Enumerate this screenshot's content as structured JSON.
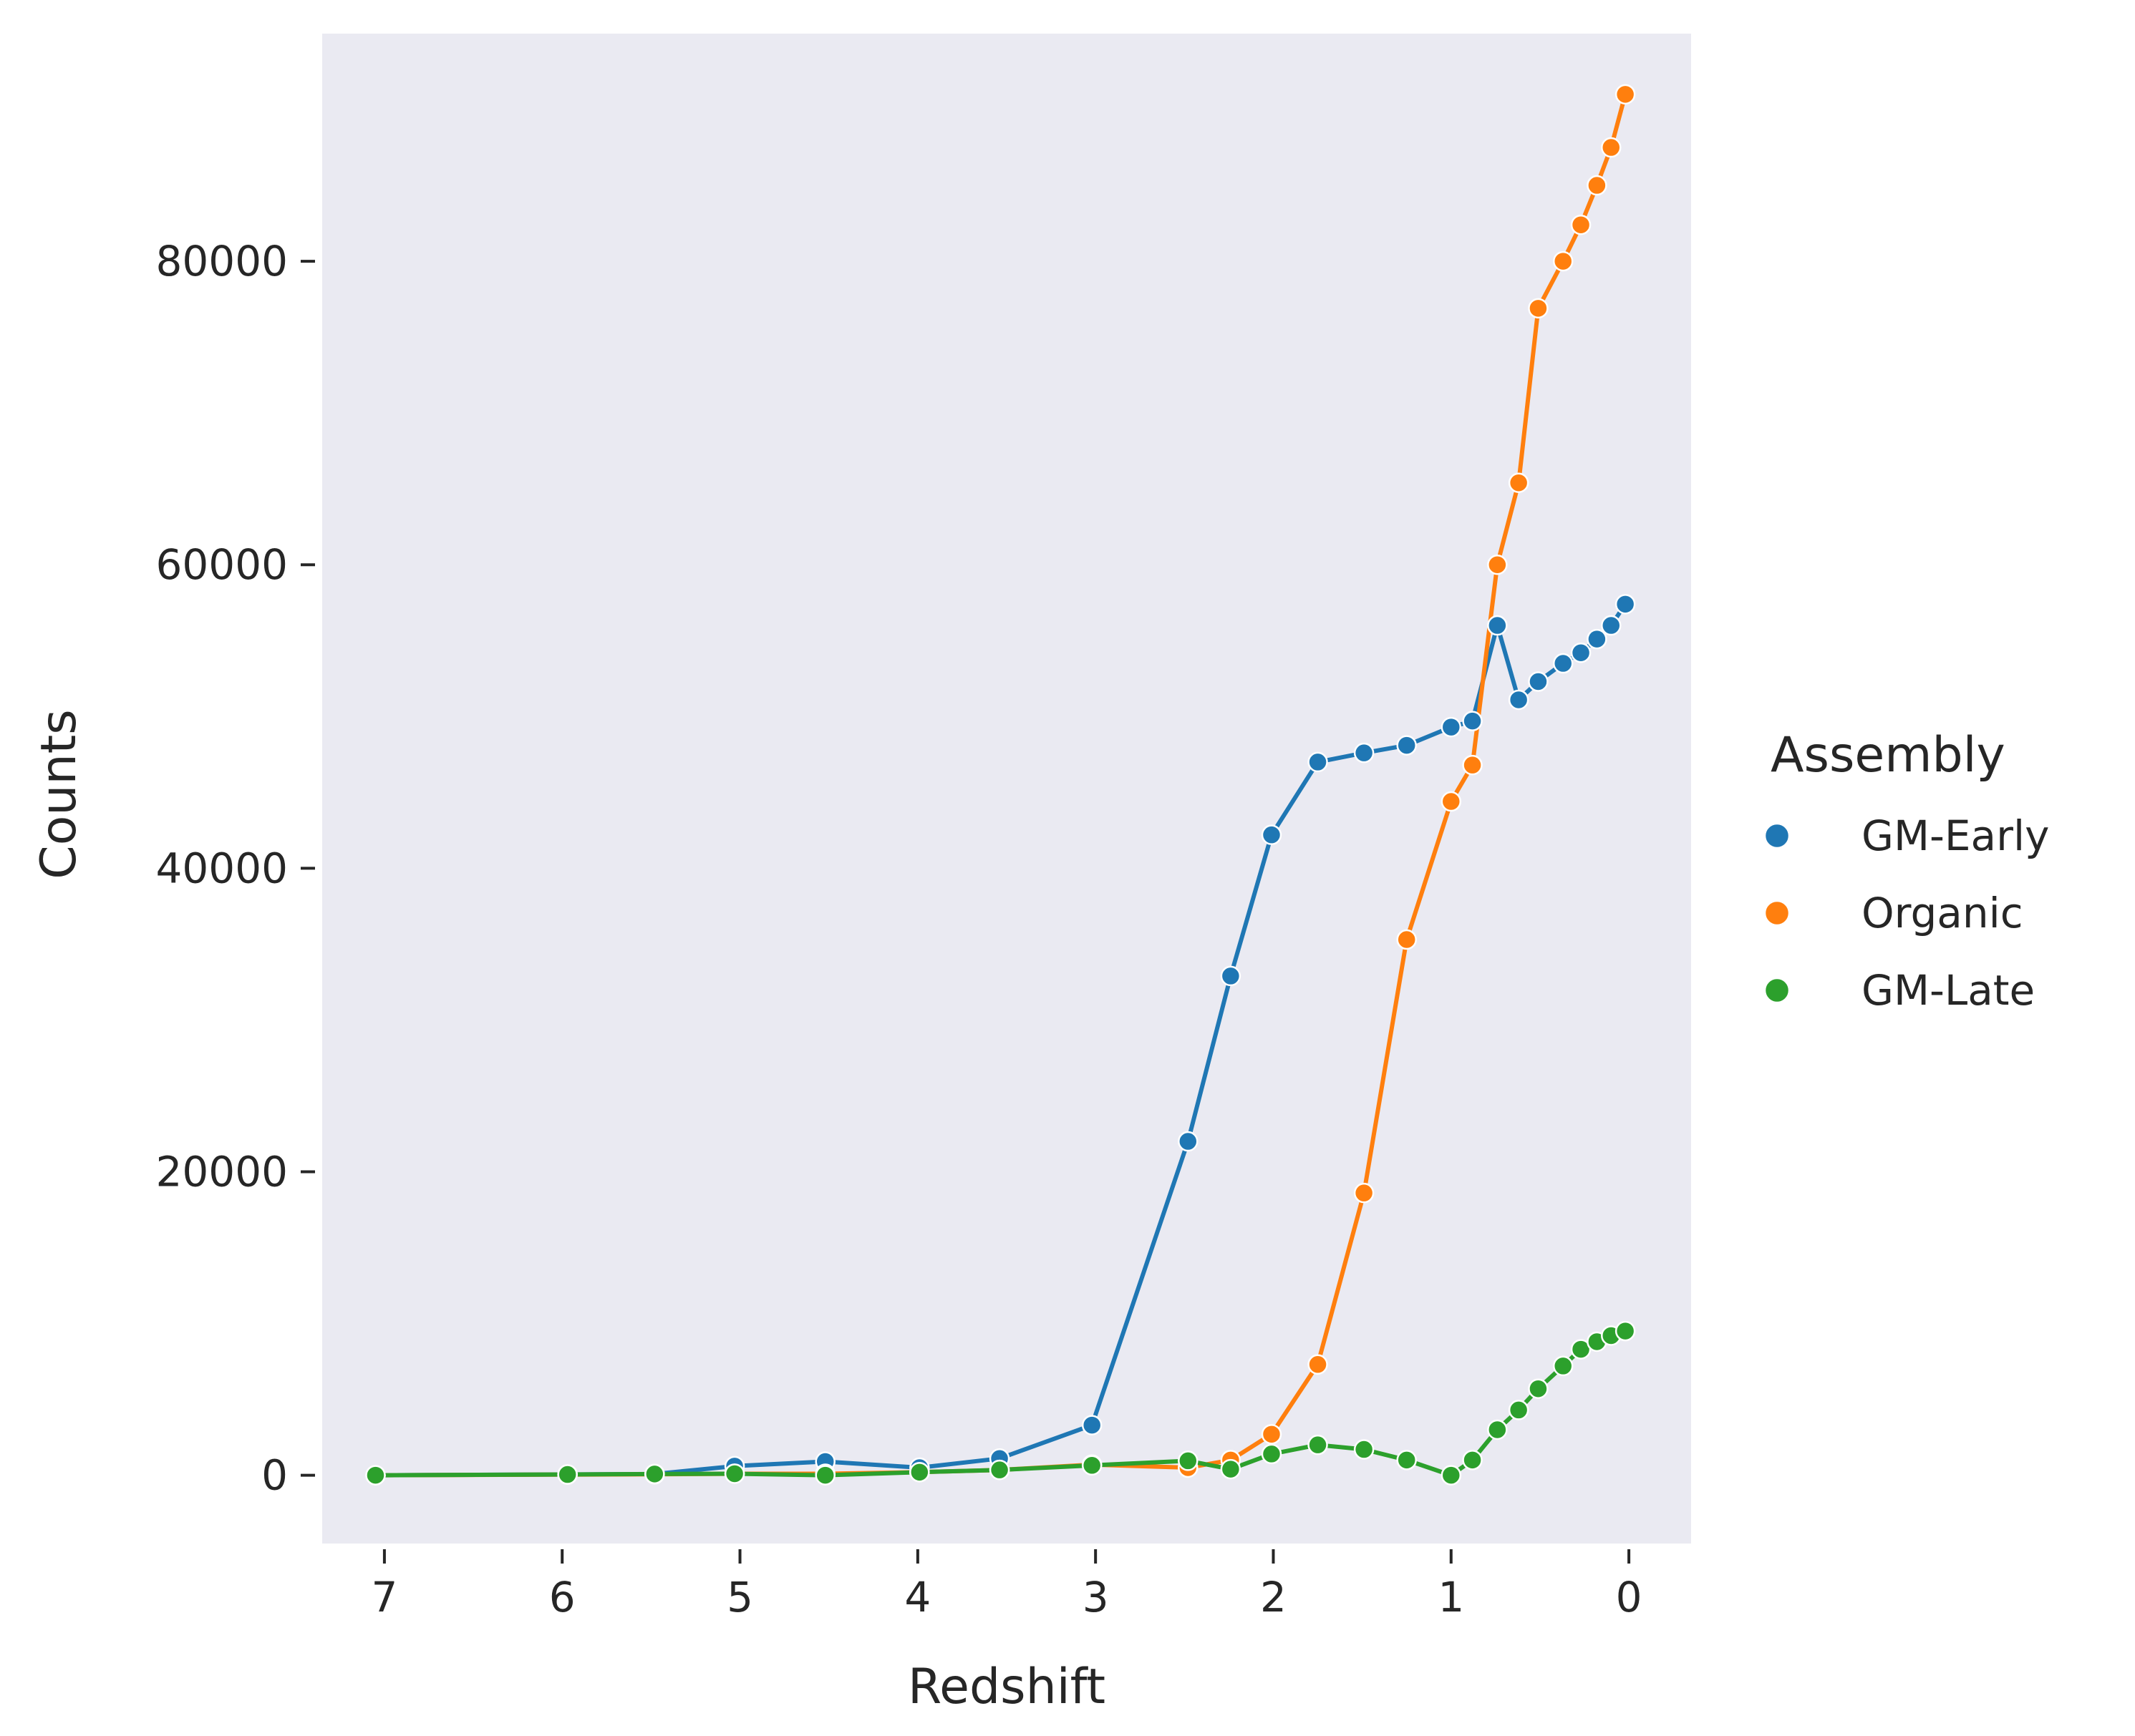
{
  "chart_data": {
    "type": "line",
    "xlabel": "Redshift",
    "ylabel": "Counts",
    "x_reversed": true,
    "xlim": [
      7.35,
      -0.35
    ],
    "ylim": [
      -4500,
      95000
    ],
    "xticks": [
      7,
      6,
      5,
      4,
      3,
      2,
      1,
      0
    ],
    "yticks": [
      0,
      20000,
      40000,
      60000,
      80000
    ],
    "grid": false,
    "background": "#eaeaf2",
    "legend": {
      "title": "Assembly",
      "placement": "right",
      "entries": [
        "GM-Early",
        "Organic",
        "GM-Late"
      ]
    },
    "series": [
      {
        "name": "GM-Early",
        "color": "#1f77b4",
        "x": [
          7.05,
          5.97,
          5.48,
          5.03,
          4.52,
          3.99,
          3.54,
          3.02,
          2.48,
          2.24,
          2.01,
          1.75,
          1.49,
          1.25,
          1.0,
          0.88,
          0.74,
          0.62,
          0.51,
          0.37,
          0.27,
          0.18,
          0.1,
          0.02
        ],
        "y": [
          0,
          50,
          80,
          600,
          900,
          500,
          1100,
          3300,
          22000,
          32900,
          42200,
          47000,
          47600,
          48100,
          49300,
          49700,
          56000,
          51100,
          52300,
          53500,
          54200,
          55100,
          56000,
          57400
        ]
      },
      {
        "name": "Organic",
        "color": "#ff7f0e",
        "x": [
          7.05,
          5.97,
          5.48,
          5.03,
          4.52,
          3.99,
          3.54,
          3.02,
          2.48,
          2.24,
          2.01,
          1.75,
          1.49,
          1.25,
          1.0,
          0.88,
          0.74,
          0.62,
          0.51,
          0.37,
          0.27,
          0.18,
          0.1,
          0.02
        ],
        "y": [
          0,
          40,
          60,
          100,
          100,
          200,
          350,
          700,
          500,
          1000,
          2700,
          7300,
          18600,
          35300,
          44400,
          46800,
          60000,
          65400,
          76900,
          80000,
          82400,
          85000,
          87500,
          91000
        ]
      },
      {
        "name": "GM-Late",
        "color": "#2ca02c",
        "x": [
          7.05,
          5.97,
          5.48,
          5.03,
          4.52,
          3.99,
          3.54,
          3.02,
          2.48,
          2.24,
          2.01,
          1.75,
          1.49,
          1.25,
          1.0,
          0.88,
          0.74,
          0.62,
          0.51,
          0.37,
          0.27,
          0.18,
          0.1,
          0.02
        ],
        "y": [
          0,
          50,
          80,
          100,
          0,
          200,
          350,
          650,
          950,
          400,
          1400,
          2000,
          1700,
          1000,
          0,
          1000,
          3000,
          4300,
          5700,
          7200,
          8300,
          8800,
          9200,
          9500
        ]
      }
    ]
  }
}
